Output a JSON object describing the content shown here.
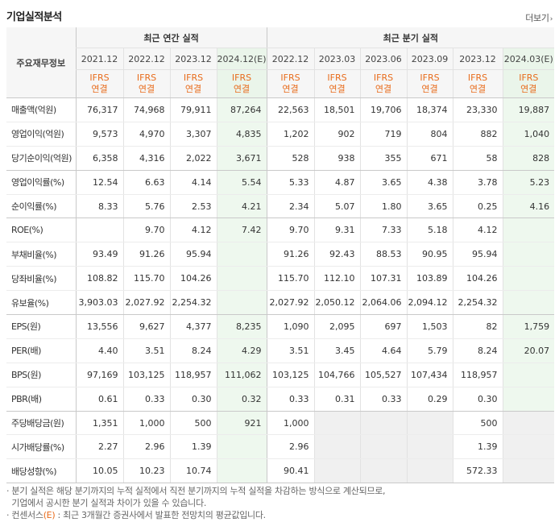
{
  "header": {
    "title": "기업실적분석",
    "more_label": "더보기",
    "more_icon": "chevron-right-icon"
  },
  "table": {
    "corner_label": "주요재무정보",
    "group_annual": "최근 연간 실적",
    "group_quarter": "최근 분기 실적",
    "periods": [
      "2021.12",
      "2022.12",
      "2023.12",
      "2024.12(E)",
      "2022.12",
      "2023.03",
      "2023.06",
      "2023.09",
      "2023.12",
      "2024.03(E)"
    ],
    "ifrs_top": "IFRS",
    "ifrs_bottom": "연결",
    "rows": [
      {
        "label": "매출액(억원)",
        "values": [
          "76,317",
          "74,968",
          "79,911",
          "87,264",
          "22,563",
          "18,501",
          "19,706",
          "18,374",
          "23,330",
          "19,887"
        ]
      },
      {
        "label": "영업이익(억원)",
        "values": [
          "9,573",
          "4,970",
          "3,307",
          "4,835",
          "1,202",
          "902",
          "719",
          "804",
          "882",
          "1,040"
        ]
      },
      {
        "label": "당기순이익(억원)",
        "values": [
          "6,358",
          "4,316",
          "2,022",
          "3,671",
          "528",
          "938",
          "355",
          "671",
          "58",
          "828"
        ]
      },
      {
        "label": "영업이익률(%)",
        "values": [
          "12.54",
          "6.63",
          "4.14",
          "5.54",
          "5.33",
          "4.87",
          "3.65",
          "4.38",
          "3.78",
          "5.23"
        ]
      },
      {
        "label": "순이익률(%)",
        "values": [
          "8.33",
          "5.76",
          "2.53",
          "4.21",
          "2.34",
          "5.07",
          "1.80",
          "3.65",
          "0.25",
          "4.16"
        ]
      },
      {
        "label": "ROE(%)",
        "values": [
          "",
          "9.70",
          "4.12",
          "7.42",
          "9.70",
          "9.31",
          "7.33",
          "5.18",
          "4.12",
          ""
        ]
      },
      {
        "label": "부채비율(%)",
        "values": [
          "93.49",
          "91.26",
          "95.94",
          "",
          "91.26",
          "92.43",
          "88.53",
          "90.95",
          "95.94",
          ""
        ]
      },
      {
        "label": "당좌비율(%)",
        "values": [
          "108.82",
          "115.70",
          "104.26",
          "",
          "115.70",
          "112.10",
          "107.31",
          "103.89",
          "104.26",
          ""
        ]
      },
      {
        "label": "유보율(%)",
        "values": [
          "3,903.03",
          "2,027.92",
          "2,254.32",
          "",
          "2,027.92",
          "2,050.12",
          "2,064.06",
          "2,094.12",
          "2,254.32",
          ""
        ]
      },
      {
        "label": "EPS(원)",
        "values": [
          "13,556",
          "9,627",
          "4,377",
          "8,235",
          "1,090",
          "2,095",
          "697",
          "1,503",
          "82",
          "1,759"
        ]
      },
      {
        "label": "PER(배)",
        "values": [
          "4.40",
          "3.51",
          "8.24",
          "4.29",
          "3.51",
          "3.45",
          "4.64",
          "5.79",
          "8.24",
          "20.07"
        ]
      },
      {
        "label": "BPS(원)",
        "values": [
          "97,169",
          "103,125",
          "118,957",
          "111,062",
          "103,125",
          "104,766",
          "105,527",
          "107,434",
          "118,957",
          ""
        ]
      },
      {
        "label": "PBR(배)",
        "values": [
          "0.61",
          "0.33",
          "0.30",
          "0.32",
          "0.33",
          "0.31",
          "0.33",
          "0.29",
          "0.30",
          ""
        ]
      },
      {
        "label": "주당배당금(원)",
        "values": [
          "1,351",
          "1,000",
          "500",
          "921",
          "1,000",
          "",
          "",
          "",
          "500",
          ""
        ]
      },
      {
        "label": "시가배당률(%)",
        "values": [
          "2.27",
          "2.96",
          "1.39",
          "",
          "2.96",
          "",
          "",
          "",
          "1.39",
          ""
        ]
      },
      {
        "label": "배당성향(%)",
        "values": [
          "10.05",
          "10.23",
          "10.74",
          "",
          "90.41",
          "",
          "",
          "",
          "572.33",
          ""
        ]
      }
    ]
  },
  "footnotes": {
    "line1": "분기 실적은 해당 분기까지의 누적 실적에서 직전 분기까지의 누적 실적을 차감하는 방식으로 계산되므로,",
    "line2": "기업에서 공시한 분기 실적과 차이가 있을 수 있습니다.",
    "line3_prefix": "컨센서스",
    "line3_mark": "(E)",
    "line3_suffix": ": 최근 3개월간 증권사에서 발표한 전망치의 평균값입니다."
  }
}
